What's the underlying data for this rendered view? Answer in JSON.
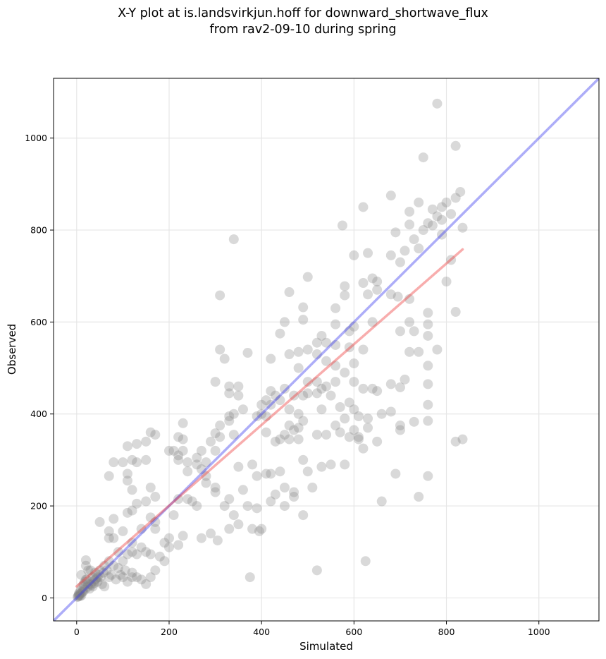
{
  "figure": {
    "title_line1": "X-Y plot at is.landsvirkjun.hoff for downward_shortwave_flux",
    "title_line2": "from rav2-09-10 during spring"
  },
  "chart_data": {
    "type": "scatter",
    "xlabel": "Simulated",
    "ylabel": "Observed",
    "xlim": [
      -50,
      1130
    ],
    "ylim": [
      -50,
      1130
    ],
    "xticks": [
      0,
      200,
      400,
      600,
      800,
      1000
    ],
    "yticks": [
      0,
      200,
      400,
      600,
      800,
      1000
    ],
    "grid": true,
    "point_color": "#808080",
    "identity_line": {
      "x": [
        -50,
        1130
      ],
      "y": [
        -50,
        1130
      ],
      "color": "#3333ee"
    },
    "fit_line": {
      "x": [
        0,
        835
      ],
      "y": [
        25,
        758
      ],
      "color": "#ee3333"
    },
    "points": [
      [
        780,
        1075
      ],
      [
        750,
        958
      ],
      [
        820,
        983
      ],
      [
        680,
        875
      ],
      [
        830,
        883
      ],
      [
        820,
        870
      ],
      [
        800,
        860
      ],
      [
        740,
        860
      ],
      [
        790,
        850
      ],
      [
        620,
        850
      ],
      [
        770,
        845
      ],
      [
        720,
        840
      ],
      [
        810,
        835
      ],
      [
        780,
        830
      ],
      [
        790,
        822
      ],
      [
        760,
        815
      ],
      [
        720,
        812
      ],
      [
        770,
        810
      ],
      [
        575,
        810
      ],
      [
        835,
        805
      ],
      [
        750,
        800
      ],
      [
        690,
        795
      ],
      [
        730,
        780
      ],
      [
        790,
        790
      ],
      [
        340,
        780
      ],
      [
        740,
        760
      ],
      [
        600,
        745
      ],
      [
        710,
        755
      ],
      [
        680,
        745
      ],
      [
        630,
        750
      ],
      [
        810,
        735
      ],
      [
        700,
        730
      ],
      [
        500,
        698
      ],
      [
        640,
        695
      ],
      [
        650,
        688
      ],
      [
        620,
        685
      ],
      [
        580,
        678
      ],
      [
        800,
        688
      ],
      [
        650,
        670
      ],
      [
        630,
        660
      ],
      [
        720,
        650
      ],
      [
        460,
        665
      ],
      [
        580,
        658
      ],
      [
        680,
        660
      ],
      [
        695,
        655
      ],
      [
        310,
        658
      ],
      [
        560,
        630
      ],
      [
        490,
        632
      ],
      [
        760,
        620
      ],
      [
        820,
        622
      ],
      [
        720,
        600
      ],
      [
        760,
        595
      ],
      [
        560,
        595
      ],
      [
        600,
        590
      ],
      [
        640,
        600
      ],
      [
        490,
        605
      ],
      [
        700,
        580
      ],
      [
        730,
        580
      ],
      [
        760,
        570
      ],
      [
        590,
        580
      ],
      [
        530,
        570
      ],
      [
        540,
        555
      ],
      [
        500,
        540
      ],
      [
        440,
        575
      ],
      [
        450,
        600
      ],
      [
        520,
        555
      ],
      [
        560,
        550
      ],
      [
        590,
        545
      ],
      [
        460,
        530
      ],
      [
        480,
        535
      ],
      [
        310,
        540
      ],
      [
        320,
        520
      ],
      [
        370,
        533
      ],
      [
        420,
        520
      ],
      [
        520,
        530
      ],
      [
        540,
        515
      ],
      [
        560,
        505
      ],
      [
        600,
        510
      ],
      [
        720,
        535
      ],
      [
        740,
        535
      ],
      [
        780,
        540
      ],
      [
        760,
        505
      ],
      [
        620,
        540
      ],
      [
        480,
        500
      ],
      [
        580,
        490
      ],
      [
        680,
        465
      ],
      [
        700,
        458
      ],
      [
        710,
        475
      ],
      [
        760,
        465
      ],
      [
        300,
        470
      ],
      [
        330,
        460
      ],
      [
        330,
        445
      ],
      [
        350,
        440
      ],
      [
        350,
        460
      ],
      [
        410,
        430
      ],
      [
        420,
        420
      ],
      [
        400,
        420
      ],
      [
        420,
        450
      ],
      [
        430,
        440
      ],
      [
        440,
        430
      ],
      [
        470,
        440
      ],
      [
        450,
        455
      ],
      [
        500,
        470
      ],
      [
        520,
        470
      ],
      [
        540,
        460
      ],
      [
        560,
        470
      ],
      [
        600,
        470
      ],
      [
        620,
        455
      ],
      [
        640,
        455
      ],
      [
        650,
        450
      ],
      [
        590,
        425
      ],
      [
        550,
        440
      ],
      [
        530,
        455
      ],
      [
        520,
        445
      ],
      [
        500,
        445
      ],
      [
        490,
        440
      ],
      [
        460,
        410
      ],
      [
        480,
        400
      ],
      [
        530,
        410
      ],
      [
        570,
        415
      ],
      [
        600,
        410
      ],
      [
        610,
        395
      ],
      [
        630,
        390
      ],
      [
        580,
        390
      ],
      [
        700,
        365
      ],
      [
        730,
        383
      ],
      [
        760,
        385
      ],
      [
        760,
        420
      ],
      [
        560,
        375
      ],
      [
        520,
        355
      ],
      [
        480,
        370
      ],
      [
        490,
        385
      ],
      [
        460,
        375
      ],
      [
        450,
        355
      ],
      [
        440,
        345
      ],
      [
        410,
        360
      ],
      [
        430,
        340
      ],
      [
        400,
        400
      ],
      [
        410,
        395
      ],
      [
        390,
        395
      ],
      [
        360,
        410
      ],
      [
        340,
        400
      ],
      [
        330,
        385
      ],
      [
        330,
        395
      ],
      [
        310,
        375
      ],
      [
        310,
        350
      ],
      [
        290,
        340
      ],
      [
        300,
        358
      ],
      [
        300,
        320
      ],
      [
        270,
        320
      ],
      [
        230,
        345
      ],
      [
        220,
        350
      ],
      [
        230,
        380
      ],
      [
        260,
        305
      ],
      [
        240,
        295
      ],
      [
        210,
        320
      ],
      [
        200,
        320
      ],
      [
        230,
        320
      ],
      [
        220,
        310
      ],
      [
        220,
        300
      ],
      [
        160,
        360
      ],
      [
        170,
        355
      ],
      [
        150,
        340
      ],
      [
        130,
        335
      ],
      [
        110,
        330
      ],
      [
        120,
        300
      ],
      [
        100,
        295
      ],
      [
        80,
        295
      ],
      [
        110,
        270
      ],
      [
        130,
        295
      ],
      [
        70,
        265
      ],
      [
        150,
        300
      ],
      [
        160,
        240
      ],
      [
        120,
        235
      ],
      [
        110,
        255
      ],
      [
        170,
        220
      ],
      [
        150,
        210
      ],
      [
        130,
        205
      ],
      [
        120,
        190
      ],
      [
        110,
        185
      ],
      [
        80,
        172
      ],
      [
        50,
        165
      ],
      [
        70,
        145
      ],
      [
        70,
        130
      ],
      [
        80,
        130
      ],
      [
        100,
        145
      ],
      [
        90,
        100
      ],
      [
        100,
        80
      ],
      [
        110,
        95
      ],
      [
        120,
        120
      ],
      [
        120,
        100
      ],
      [
        130,
        95
      ],
      [
        140,
        110
      ],
      [
        150,
        100
      ],
      [
        160,
        95
      ],
      [
        170,
        150
      ],
      [
        170,
        165
      ],
      [
        160,
        175
      ],
      [
        140,
        150
      ],
      [
        190,
        120
      ],
      [
        200,
        130
      ],
      [
        210,
        180
      ],
      [
        220,
        215
      ],
      [
        240,
        275
      ],
      [
        260,
        290
      ],
      [
        270,
        280
      ],
      [
        280,
        250
      ],
      [
        280,
        265
      ],
      [
        280,
        295
      ],
      [
        240,
        215
      ],
      [
        250,
        210
      ],
      [
        260,
        200
      ],
      [
        230,
        135
      ],
      [
        220,
        115
      ],
      [
        200,
        110
      ],
      [
        180,
        90
      ],
      [
        190,
        80
      ],
      [
        170,
        60
      ],
      [
        160,
        45
      ],
      [
        150,
        30
      ],
      [
        140,
        40
      ],
      [
        130,
        45
      ],
      [
        120,
        55
      ],
      [
        100,
        45
      ],
      [
        110,
        35
      ],
      [
        120,
        45
      ],
      [
        90,
        65
      ],
      [
        80,
        70
      ],
      [
        70,
        80
      ],
      [
        60,
        70
      ],
      [
        50,
        60
      ],
      [
        40,
        55
      ],
      [
        30,
        60
      ],
      [
        20,
        70
      ],
      [
        10,
        50
      ],
      [
        20,
        40
      ],
      [
        25,
        30
      ],
      [
        35,
        25
      ],
      [
        45,
        35
      ],
      [
        55,
        30
      ],
      [
        60,
        25
      ],
      [
        70,
        45
      ],
      [
        75,
        50
      ],
      [
        85,
        40
      ],
      [
        95,
        50
      ],
      [
        105,
        60
      ],
      [
        20,
        82
      ],
      [
        25,
        60
      ],
      [
        35,
        45
      ],
      [
        15,
        20
      ],
      [
        5,
        10
      ],
      [
        8,
        15
      ],
      [
        12,
        25
      ],
      [
        15,
        30
      ],
      [
        18,
        35
      ],
      [
        22,
        40
      ],
      [
        28,
        20
      ],
      [
        32,
        28
      ],
      [
        38,
        32
      ],
      [
        42,
        42
      ],
      [
        48,
        50
      ],
      [
        52,
        45
      ],
      [
        58,
        55
      ],
      [
        65,
        60
      ],
      [
        10,
        5
      ],
      [
        3,
        3
      ],
      [
        6,
        8
      ],
      [
        12,
        12
      ],
      [
        18,
        18
      ],
      [
        24,
        24
      ],
      [
        30,
        30
      ],
      [
        36,
        36
      ],
      [
        5,
        5
      ],
      [
        9,
        9
      ],
      [
        14,
        14
      ],
      [
        40,
        40
      ],
      [
        45,
        45
      ],
      [
        2,
        2
      ],
      [
        4,
        6
      ],
      [
        7,
        4
      ],
      [
        300,
        240
      ],
      [
        320,
        200
      ],
      [
        330,
        215
      ],
      [
        300,
        230
      ],
      [
        340,
        180
      ],
      [
        350,
        285
      ],
      [
        360,
        235
      ],
      [
        370,
        200
      ],
      [
        390,
        195
      ],
      [
        400,
        150
      ],
      [
        420,
        210
      ],
      [
        430,
        225
      ],
      [
        440,
        275
      ],
      [
        450,
        240
      ],
      [
        470,
        230
      ],
      [
        490,
        300
      ],
      [
        500,
        275
      ],
      [
        530,
        285
      ],
      [
        550,
        290
      ],
      [
        580,
        290
      ],
      [
        600,
        365
      ],
      [
        610,
        350
      ],
      [
        620,
        325
      ],
      [
        650,
        340
      ],
      [
        660,
        210
      ],
      [
        690,
        270
      ],
      [
        740,
        220
      ],
      [
        760,
        265
      ],
      [
        820,
        340
      ],
      [
        835,
        345
      ],
      [
        375,
        45
      ],
      [
        520,
        60
      ],
      [
        625,
        80
      ],
      [
        490,
        180
      ],
      [
        305,
        125
      ],
      [
        270,
        130
      ],
      [
        290,
        140
      ],
      [
        330,
        150
      ],
      [
        350,
        160
      ],
      [
        380,
        150
      ],
      [
        395,
        145
      ],
      [
        420,
        270
      ],
      [
        450,
        200
      ],
      [
        470,
        220
      ],
      [
        510,
        240
      ],
      [
        540,
        355
      ],
      [
        570,
        360
      ],
      [
        590,
        350
      ],
      [
        610,
        345
      ],
      [
        630,
        370
      ],
      [
        660,
        400
      ],
      [
        700,
        375
      ],
      [
        680,
        405
      ],
      [
        460,
        345
      ],
      [
        470,
        365
      ],
      [
        380,
        290
      ],
      [
        390,
        265
      ],
      [
        410,
        270
      ],
      [
        480,
        345
      ],
      [
        340,
        355
      ]
    ]
  }
}
